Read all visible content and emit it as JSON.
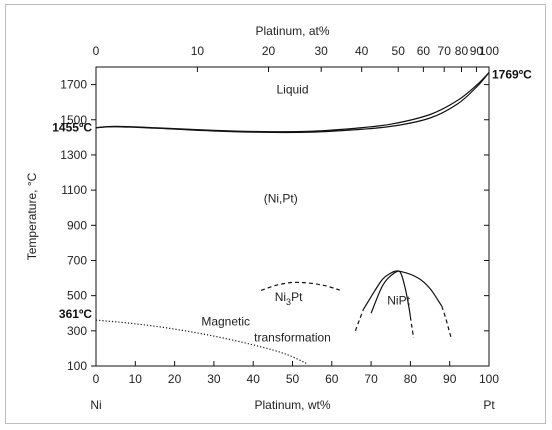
{
  "chart_data": {
    "type": "line",
    "title": "",
    "top_xlabel": "Platinum, at%",
    "top_ticks": [
      0,
      10,
      20,
      30,
      40,
      50,
      60,
      70,
      80,
      90,
      100
    ],
    "top_tick_wt": [
      0,
      25.8,
      43.9,
      57.3,
      67.6,
      76.9,
      83.3,
      88.6,
      93.0,
      96.8,
      100
    ],
    "xlabel": "Platinum, wt%",
    "xlim": [
      0,
      100
    ],
    "xticks": [
      0,
      10,
      20,
      30,
      40,
      50,
      60,
      70,
      80,
      90,
      100
    ],
    "ylabel": "Temperature, °C",
    "ylim": [
      100,
      1800
    ],
    "yticks": [
      100,
      300,
      500,
      700,
      900,
      1100,
      1300,
      1500,
      1700
    ],
    "left_end_label": "Ni",
    "right_end_label": "Pt",
    "annotations": [
      {
        "label": "1455ºC",
        "x": 0,
        "y": 1455
      },
      {
        "label": "1769ºC",
        "x": 100,
        "y": 1769
      },
      {
        "label": "361ºC",
        "x": 0,
        "y": 361
      }
    ],
    "regions": [
      {
        "label": "Liquid",
        "x": 50,
        "y": 1650
      },
      {
        "label": "(Ni,Pt)",
        "x": 47,
        "y": 1030
      },
      {
        "label": "NiPt",
        "x": 77,
        "y": 450
      }
    ],
    "ni3pt_label": {
      "main": "Ni",
      "sub": "3",
      "tail": "Pt",
      "x": 49,
      "y": 470
    },
    "magnetic_label": {
      "line1": "Magnetic",
      "line2": "transformation",
      "x1": 33,
      "y1": 330,
      "x2": 50,
      "y2": 240
    },
    "series": [
      {
        "style": "solid",
        "points": [
          [
            0,
            1455
          ],
          [
            5,
            1462
          ],
          [
            15,
            1455
          ],
          [
            30,
            1440
          ],
          [
            45,
            1432
          ],
          [
            55,
            1435
          ],
          [
            65,
            1450
          ],
          [
            75,
            1475
          ],
          [
            85,
            1530
          ],
          [
            92,
            1610
          ],
          [
            97,
            1700
          ],
          [
            100,
            1769
          ]
        ]
      },
      {
        "style": "solid",
        "points": [
          [
            0,
            1455
          ],
          [
            5,
            1460
          ],
          [
            15,
            1452
          ],
          [
            30,
            1436
          ],
          [
            45,
            1428
          ],
          [
            55,
            1430
          ],
          [
            65,
            1442
          ],
          [
            75,
            1462
          ],
          [
            85,
            1510
          ],
          [
            92,
            1590
          ],
          [
            97,
            1690
          ],
          [
            100,
            1769
          ]
        ]
      },
      {
        "style": "dotted",
        "points": [
          [
            0,
            361
          ],
          [
            10,
            340
          ],
          [
            20,
            310
          ],
          [
            30,
            270
          ],
          [
            40,
            220
          ],
          [
            48,
            170
          ],
          [
            54,
            110
          ]
        ]
      },
      {
        "style": "dashed",
        "points": [
          [
            42,
            530
          ],
          [
            46,
            560
          ],
          [
            50,
            575
          ],
          [
            54,
            572
          ],
          [
            58,
            558
          ],
          [
            62,
            532
          ]
        ]
      },
      {
        "style": "solid",
        "points": [
          [
            68,
            420
          ],
          [
            71,
            530
          ],
          [
            73,
            595
          ],
          [
            75,
            628
          ],
          [
            76.5,
            640
          ],
          [
            77.5,
            630
          ],
          [
            78.5,
            560
          ],
          [
            79.5,
            450
          ],
          [
            80,
            380
          ]
        ]
      },
      {
        "style": "dashed",
        "points": [
          [
            66,
            300
          ],
          [
            67,
            360
          ],
          [
            68,
            420
          ]
        ]
      },
      {
        "style": "dashed",
        "points": [
          [
            80,
            380
          ],
          [
            80.4,
            320
          ],
          [
            80.8,
            260
          ]
        ]
      },
      {
        "style": "solid",
        "points": [
          [
            70,
            400
          ],
          [
            73,
            560
          ],
          [
            76,
            630
          ],
          [
            78,
            635
          ],
          [
            82,
            600
          ],
          [
            85,
            540
          ],
          [
            88,
            440
          ]
        ]
      },
      {
        "style": "dashed",
        "points": [
          [
            88,
            440
          ],
          [
            89,
            370
          ],
          [
            90,
            290
          ],
          [
            90.5,
            250
          ]
        ]
      }
    ]
  }
}
